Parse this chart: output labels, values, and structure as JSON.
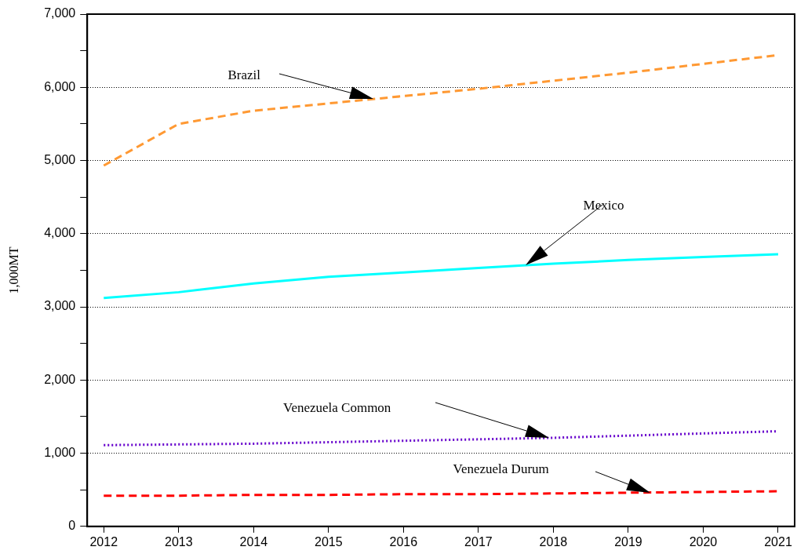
{
  "chart_data": {
    "type": "line",
    "ylabel": "1,000MT",
    "x": [
      2012,
      2013,
      2014,
      2015,
      2016,
      2017,
      2018,
      2019,
      2020,
      2021
    ],
    "xlim": [
      2011.78,
      2021.22
    ],
    "xticks": [
      2012,
      2013,
      2014,
      2015,
      2016,
      2017,
      2018,
      2019,
      2020,
      2021
    ],
    "ylim": [
      0,
      7000
    ],
    "yticks": [
      {
        "value": 0,
        "label": "0"
      },
      {
        "value": 500,
        "label": null
      },
      {
        "value": 1000,
        "label": "1,000"
      },
      {
        "value": 1500,
        "label": null
      },
      {
        "value": 2000,
        "label": "2,000"
      },
      {
        "value": 2500,
        "label": null
      },
      {
        "value": 3000,
        "label": "3,000"
      },
      {
        "value": 3500,
        "label": null
      },
      {
        "value": 4000,
        "label": "4,000"
      },
      {
        "value": 4500,
        "label": null
      },
      {
        "value": 5000,
        "label": "5,000"
      },
      {
        "value": 5500,
        "label": null
      },
      {
        "value": 6000,
        "label": "6,000"
      },
      {
        "value": 6500,
        "label": null
      },
      {
        "value": 7000,
        "label": "7,000"
      }
    ],
    "grid": "y",
    "legend": false,
    "marker": "none",
    "series": [
      {
        "name": "Brazil",
        "color": "#ff9933",
        "line_style": "dashed",
        "values": [
          4930,
          5500,
          5680,
          5780,
          5880,
          5980,
          6090,
          6200,
          6320,
          6440
        ]
      },
      {
        "name": "Mexico",
        "color": "#00ffff",
        "line_style": "solid",
        "values": [
          3120,
          3200,
          3320,
          3410,
          3470,
          3530,
          3590,
          3640,
          3680,
          3720
        ]
      },
      {
        "name": "Venezuela Common",
        "color": "#6600cc",
        "line_style": "dotted",
        "values": [
          1110,
          1120,
          1130,
          1150,
          1170,
          1190,
          1210,
          1240,
          1270,
          1300
        ]
      },
      {
        "name": "Venezuela Durum",
        "color": "#ff0000",
        "line_style": "dashed",
        "values": [
          420,
          420,
          430,
          430,
          440,
          440,
          450,
          460,
          470,
          480
        ]
      }
    ]
  }
}
